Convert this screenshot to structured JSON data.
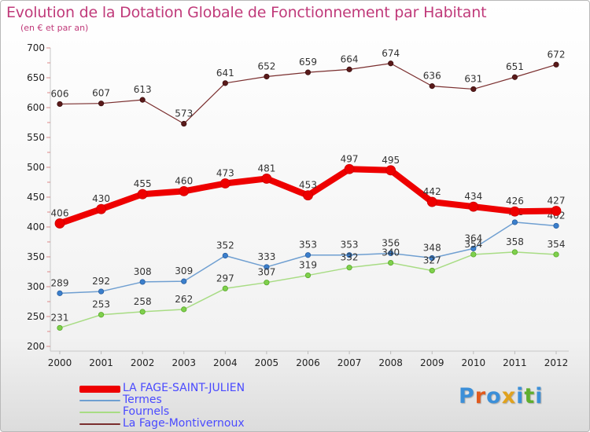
{
  "title": "Evolution de la Dotation Globale de Fonctionnement par Habitant",
  "subtitle": "(en € et par an)",
  "logo": {
    "letters": [
      "P",
      "r",
      "o",
      "x",
      "i",
      "t",
      "i"
    ],
    "colors": [
      "#3c8fd8",
      "#e05a1e",
      "#3c8fd8",
      "#e0a21e",
      "#3c8fd8",
      "#5fae2e",
      "#3c8fd8"
    ]
  },
  "chart_data": {
    "type": "line",
    "title": "Evolution de la Dotation Globale de Fonctionnement par Habitant",
    "subtitle": "(en € et par an)",
    "x": [
      2000,
      2001,
      2002,
      2003,
      2004,
      2005,
      2006,
      2007,
      2008,
      2009,
      2010,
      2011,
      2012
    ],
    "ylim": [
      200,
      700
    ],
    "yticks": [
      200,
      250,
      300,
      350,
      400,
      450,
      500,
      550,
      600,
      650,
      700
    ],
    "grid": false,
    "legend_position": "bottom-left",
    "series": [
      {
        "name": "LA FAGE-SAINT-JULIEN",
        "color": "#ee0000",
        "values": [
          406,
          430,
          455,
          460,
          473,
          481,
          453,
          497,
          495,
          442,
          434,
          426,
          427
        ]
      },
      {
        "name": "Termes",
        "color": "#6f9fd1",
        "values": [
          289,
          292,
          308,
          309,
          352,
          333,
          353,
          353,
          356,
          348,
          364,
          408,
          402
        ]
      },
      {
        "name": "Fournels",
        "color": "#a8dc84",
        "values": [
          231,
          253,
          258,
          262,
          297,
          307,
          319,
          332,
          340,
          327,
          354,
          358,
          354
        ]
      },
      {
        "name": "La Fage-Montivernoux",
        "color": "#7a2e2e",
        "values": [
          606,
          607,
          613,
          573,
          641,
          652,
          659,
          664,
          674,
          636,
          631,
          651,
          672
        ]
      }
    ]
  }
}
